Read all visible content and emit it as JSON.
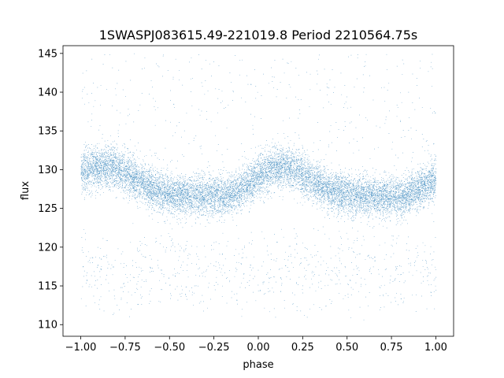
{
  "chart_data": {
    "type": "scatter",
    "title": "1SWASPJ083615.49-221019.8 Period 2210564.75s",
    "xlabel": "phase",
    "ylabel": "flux",
    "xlim": [
      -1.1,
      1.1
    ],
    "ylim": [
      108.5,
      146.0
    ],
    "xticks": [
      -1.0,
      -0.75,
      -0.5,
      -0.25,
      0.0,
      0.25,
      0.5,
      0.75,
      1.0
    ],
    "xtick_labels": [
      "−1.00",
      "−0.75",
      "−0.50",
      "−0.25",
      "0.00",
      "0.25",
      "0.50",
      "0.75",
      "1.00"
    ],
    "yticks": [
      110,
      115,
      120,
      125,
      130,
      135,
      140,
      145
    ],
    "ytick_labels": [
      "110",
      "115",
      "120",
      "125",
      "130",
      "135",
      "140",
      "145"
    ],
    "grid": false,
    "marker_color": "#1f77b4",
    "series": [
      {
        "phase_range": [
          -1.0,
          1.0
        ],
        "approx_points": 14000,
        "baseline_profile": {
          "x": [
            -1.0,
            -0.9,
            -0.82,
            -0.75,
            -0.6,
            -0.5,
            -0.35,
            -0.2,
            -0.1,
            0.0,
            0.08,
            0.18,
            0.25,
            0.4,
            0.5,
            0.65,
            0.8,
            0.9,
            1.0
          ],
          "y": [
            129.8,
            130.3,
            130.5,
            129.5,
            127.5,
            126.8,
            126.6,
            126.6,
            127.3,
            129.2,
            130.2,
            130.3,
            129.2,
            127.3,
            126.8,
            126.5,
            126.5,
            127.5,
            128.8
          ]
        },
        "scatter_width": 1.3,
        "outlier_range": [
          110,
          145
        ]
      }
    ]
  }
}
